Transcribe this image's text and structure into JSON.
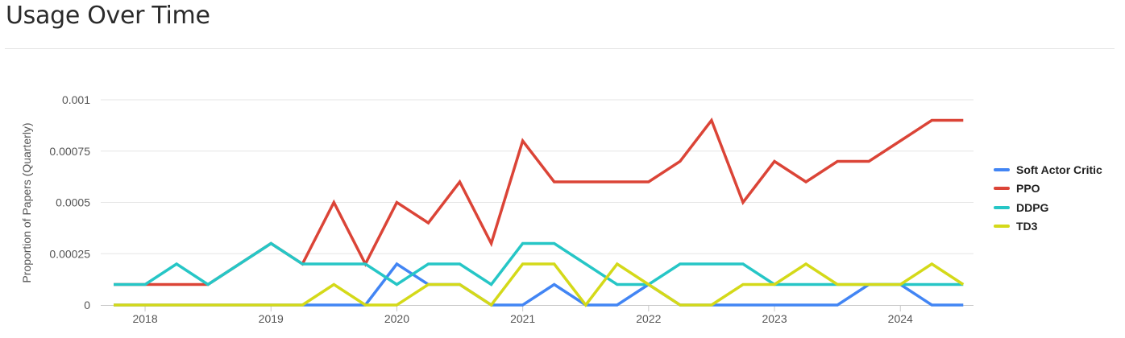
{
  "page": {
    "title": "Usage Over Time"
  },
  "chart_data": {
    "type": "line",
    "title": "",
    "xlabel": "",
    "ylabel": "Proportion of Papers (Quarterly)",
    "ylim": [
      0,
      0.001
    ],
    "yticks": [
      0,
      0.00025,
      0.0005,
      0.00075,
      0.001
    ],
    "ytick_labels": [
      "0",
      "0.00025",
      "0.0005",
      "0.00075",
      "0.001"
    ],
    "xtick_labels": [
      "2018",
      "2019",
      "2020",
      "2021",
      "2022",
      "2023",
      "2024"
    ],
    "x": [
      "2017-Q4",
      "2018-Q1",
      "2018-Q2",
      "2018-Q3",
      "2018-Q4",
      "2019-Q1",
      "2019-Q2",
      "2019-Q3",
      "2019-Q4",
      "2020-Q1",
      "2020-Q2",
      "2020-Q3",
      "2020-Q4",
      "2021-Q1",
      "2021-Q2",
      "2021-Q3",
      "2021-Q4",
      "2022-Q1",
      "2022-Q2",
      "2022-Q3",
      "2022-Q4",
      "2023-Q1",
      "2023-Q2",
      "2023-Q3",
      "2023-Q4",
      "2024-Q1",
      "2024-Q2",
      "2024-Q3"
    ],
    "grid": true,
    "legend_position": "right",
    "series": [
      {
        "name": "Soft Actor Critic",
        "color": "#4285f4",
        "values": [
          0,
          0,
          0,
          0,
          0,
          0,
          0,
          0,
          0,
          0.0002,
          0.0001,
          0.0001,
          0,
          0,
          0.0001,
          0,
          0,
          0.0001,
          0,
          0,
          0,
          0,
          0,
          0,
          0.0001,
          0.0001,
          0,
          0
        ]
      },
      {
        "name": "PPO",
        "color": "#db4437",
        "values": [
          0.0001,
          0.0001,
          0.0001,
          0.0001,
          0.0002,
          0.0003,
          0.0002,
          0.0005,
          0.0002,
          0.0005,
          0.0004,
          0.0006,
          0.0003,
          0.0008,
          0.0006,
          0.0006,
          0.0006,
          0.0006,
          0.0007,
          0.0009,
          0.0005,
          0.0007,
          0.0006,
          0.0007,
          0.0007,
          0.0008,
          0.0009,
          0.0009
        ]
      },
      {
        "name": "DDPG",
        "color": "#26c6c6",
        "values": [
          0.0001,
          0.0001,
          0.0002,
          0.0001,
          0.0002,
          0.0003,
          0.0002,
          0.0002,
          0.0002,
          0.0001,
          0.0002,
          0.0002,
          0.0001,
          0.0003,
          0.0003,
          0.0002,
          0.0001,
          0.0001,
          0.0002,
          0.0002,
          0.0002,
          0.0001,
          0.0001,
          0.0001,
          0.0001,
          0.0001,
          0.0001,
          0.0001
        ]
      },
      {
        "name": "TD3",
        "color": "#d4d919",
        "values": [
          0,
          0,
          0,
          0,
          0,
          0,
          0,
          0.0001,
          0,
          0,
          0.0001,
          0.0001,
          0,
          0.0002,
          0.0002,
          0,
          0.0002,
          0.0001,
          0,
          0,
          0.0001,
          0.0001,
          0.0002,
          0.0001,
          0.0001,
          0.0001,
          0.0002,
          0.0001
        ]
      }
    ]
  }
}
